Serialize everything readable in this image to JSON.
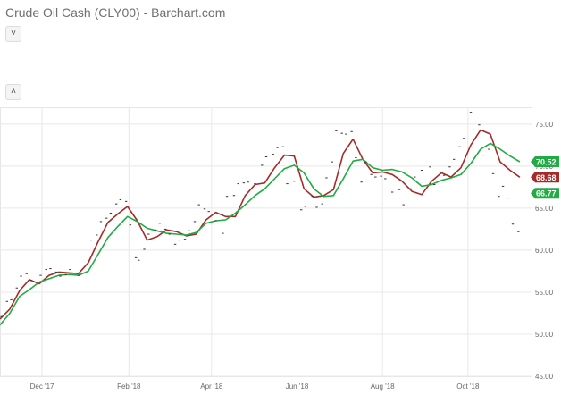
{
  "header": {
    "title": "Crude Oil Cash (CLY00) - Barchart.com",
    "collapse_icon_top": "˅",
    "collapse_icon_bottom": "˄"
  },
  "chart_data": {
    "type": "line",
    "title": "Crude Oil Cash (CLY00) - Barchart.com",
    "xlabel": "",
    "ylabel": "",
    "ylim": [
      45,
      77
    ],
    "yticks": [
      45,
      50,
      55,
      60,
      65,
      70,
      75
    ],
    "ytick_labels": [
      "45.00",
      "50.00",
      "55.00",
      "60.00",
      "65.00",
      "70.00",
      "75.00"
    ],
    "xlim": [
      "2017-11-01",
      "2018-11-16"
    ],
    "xticks": [
      "2017-12-01",
      "2018-02-01",
      "2018-04-01",
      "2018-06-01",
      "2018-08-01",
      "2018-10-01"
    ],
    "xtick_labels": [
      "Dec '17",
      "Feb '18",
      "Apr '18",
      "Jun '18",
      "Aug '18",
      "Oct '18"
    ],
    "grid": true,
    "colors": {
      "short_ma": "#a52a2a",
      "long_ma": "#22aa44",
      "price": "#333333",
      "current_price": "#a52a2a"
    },
    "series": [
      {
        "key": "short_ma",
        "points": [
          [
            "2017-11-01",
            51.8
          ],
          [
            "2017-11-08",
            53.0
          ],
          [
            "2017-11-15",
            55.2
          ],
          [
            "2017-11-22",
            56.5
          ],
          [
            "2017-11-29",
            56.0
          ],
          [
            "2017-12-06",
            57.0
          ],
          [
            "2017-12-13",
            57.4
          ],
          [
            "2017-12-20",
            57.3
          ],
          [
            "2017-12-27",
            57.2
          ],
          [
            "2018-01-03",
            58.5
          ],
          [
            "2018-01-10",
            61.0
          ],
          [
            "2018-01-17",
            63.3
          ],
          [
            "2018-01-24",
            64.3
          ],
          [
            "2018-01-31",
            65.2
          ],
          [
            "2018-02-07",
            63.5
          ],
          [
            "2018-02-14",
            61.2
          ],
          [
            "2018-02-21",
            61.6
          ],
          [
            "2018-02-28",
            62.4
          ],
          [
            "2018-03-07",
            62.2
          ],
          [
            "2018-03-14",
            61.7
          ],
          [
            "2018-03-21",
            61.9
          ],
          [
            "2018-03-28",
            63.6
          ],
          [
            "2018-04-04",
            64.5
          ],
          [
            "2018-04-11",
            64.0
          ],
          [
            "2018-04-18",
            64.0
          ],
          [
            "2018-04-25",
            66.5
          ],
          [
            "2018-05-02",
            67.8
          ],
          [
            "2018-05-09",
            68.0
          ],
          [
            "2018-05-16",
            69.8
          ],
          [
            "2018-05-23",
            71.3
          ],
          [
            "2018-05-30",
            71.2
          ],
          [
            "2018-06-06",
            67.3
          ],
          [
            "2018-06-13",
            66.3
          ],
          [
            "2018-06-20",
            66.5
          ],
          [
            "2018-06-27",
            67.2
          ],
          [
            "2018-07-04",
            71.5
          ],
          [
            "2018-07-11",
            73.2
          ],
          [
            "2018-07-18",
            70.8
          ],
          [
            "2018-07-25",
            69.2
          ],
          [
            "2018-08-01",
            69.3
          ],
          [
            "2018-08-08",
            69.0
          ],
          [
            "2018-08-15",
            68.2
          ],
          [
            "2018-08-22",
            67.0
          ],
          [
            "2018-08-29",
            66.6
          ],
          [
            "2018-09-05",
            68.2
          ],
          [
            "2018-09-12",
            69.2
          ],
          [
            "2018-09-19",
            68.7
          ],
          [
            "2018-09-26",
            69.8
          ],
          [
            "2018-10-03",
            72.5
          ],
          [
            "2018-10-10",
            74.3
          ],
          [
            "2018-10-17",
            73.8
          ],
          [
            "2018-10-24",
            70.5
          ],
          [
            "2018-10-31",
            69.5
          ],
          [
            "2018-11-07",
            68.68
          ]
        ]
      },
      {
        "key": "long_ma",
        "points": [
          [
            "2017-11-01",
            51.1
          ],
          [
            "2017-11-08",
            52.5
          ],
          [
            "2017-11-15",
            54.5
          ],
          [
            "2017-11-22",
            55.3
          ],
          [
            "2017-11-29",
            56.2
          ],
          [
            "2017-12-06",
            56.6
          ],
          [
            "2017-12-13",
            57.0
          ],
          [
            "2017-12-20",
            57.1
          ],
          [
            "2017-12-27",
            57.0
          ],
          [
            "2018-01-03",
            57.5
          ],
          [
            "2018-01-10",
            59.5
          ],
          [
            "2018-01-17",
            61.5
          ],
          [
            "2018-01-24",
            62.8
          ],
          [
            "2018-01-31",
            64.0
          ],
          [
            "2018-02-07",
            63.4
          ],
          [
            "2018-02-14",
            62.6
          ],
          [
            "2018-02-21",
            62.3
          ],
          [
            "2018-02-28",
            62.0
          ],
          [
            "2018-03-07",
            61.9
          ],
          [
            "2018-03-14",
            61.8
          ],
          [
            "2018-03-21",
            62.1
          ],
          [
            "2018-03-28",
            63.2
          ],
          [
            "2018-04-04",
            63.5
          ],
          [
            "2018-04-11",
            63.6
          ],
          [
            "2018-04-18",
            64.4
          ],
          [
            "2018-04-25",
            65.4
          ],
          [
            "2018-05-02",
            66.5
          ],
          [
            "2018-05-09",
            67.3
          ],
          [
            "2018-05-16",
            68.5
          ],
          [
            "2018-05-23",
            69.7
          ],
          [
            "2018-05-30",
            70.1
          ],
          [
            "2018-06-06",
            69.2
          ],
          [
            "2018-06-13",
            67.3
          ],
          [
            "2018-06-20",
            66.4
          ],
          [
            "2018-06-27",
            66.5
          ],
          [
            "2018-07-04",
            68.5
          ],
          [
            "2018-07-11",
            70.6
          ],
          [
            "2018-07-18",
            70.8
          ],
          [
            "2018-07-25",
            69.8
          ],
          [
            "2018-08-01",
            69.5
          ],
          [
            "2018-08-08",
            69.6
          ],
          [
            "2018-08-15",
            69.3
          ],
          [
            "2018-08-22",
            68.6
          ],
          [
            "2018-08-29",
            67.6
          ],
          [
            "2018-09-05",
            67.8
          ],
          [
            "2018-09-12",
            68.3
          ],
          [
            "2018-09-19",
            68.6
          ],
          [
            "2018-09-26",
            69.0
          ],
          [
            "2018-10-03",
            70.3
          ],
          [
            "2018-10-10",
            72.0
          ],
          [
            "2018-10-17",
            72.7
          ],
          [
            "2018-10-24",
            72.0
          ],
          [
            "2018-10-31",
            71.2
          ],
          [
            "2018-11-07",
            70.52
          ]
        ]
      },
      {
        "key": "price",
        "style": "dots",
        "points": [
          [
            "2017-11-02",
            52.1
          ],
          [
            "2017-11-06",
            53.9
          ],
          [
            "2017-11-09",
            54.1
          ],
          [
            "2017-11-13",
            55.5
          ],
          [
            "2017-11-16",
            56.9
          ],
          [
            "2017-11-20",
            57.2
          ],
          [
            "2017-11-23",
            56.4
          ],
          [
            "2017-11-27",
            56.2
          ],
          [
            "2017-11-30",
            57.0
          ],
          [
            "2017-12-04",
            57.7
          ],
          [
            "2017-12-07",
            57.8
          ],
          [
            "2017-12-11",
            57.4
          ],
          [
            "2017-12-14",
            56.9
          ],
          [
            "2017-12-18",
            57.1
          ],
          [
            "2017-12-21",
            57.7
          ],
          [
            "2017-12-27",
            57.0
          ],
          [
            "2018-01-02",
            59.3
          ],
          [
            "2018-01-05",
            61.2
          ],
          [
            "2018-01-09",
            61.8
          ],
          [
            "2018-01-12",
            63.4
          ],
          [
            "2018-01-16",
            63.8
          ],
          [
            "2018-01-19",
            64.4
          ],
          [
            "2018-01-23",
            65.5
          ],
          [
            "2018-01-26",
            66.0
          ],
          [
            "2018-01-30",
            65.8
          ],
          [
            "2018-02-02",
            63.0
          ],
          [
            "2018-02-06",
            59.1
          ],
          [
            "2018-02-08",
            58.8
          ],
          [
            "2018-02-12",
            60.1
          ],
          [
            "2018-02-15",
            61.9
          ],
          [
            "2018-02-20",
            62.4
          ],
          [
            "2018-02-23",
            63.2
          ],
          [
            "2018-02-27",
            62.5
          ],
          [
            "2018-03-02",
            61.9
          ],
          [
            "2018-03-06",
            60.7
          ],
          [
            "2018-03-09",
            61.2
          ],
          [
            "2018-03-13",
            61.3
          ],
          [
            "2018-03-16",
            62.3
          ],
          [
            "2018-03-20",
            63.4
          ],
          [
            "2018-03-23",
            65.4
          ],
          [
            "2018-03-27",
            64.9
          ],
          [
            "2018-03-30",
            64.6
          ],
          [
            "2018-04-04",
            63.5
          ],
          [
            "2018-04-09",
            62.0
          ],
          [
            "2018-04-12",
            66.4
          ],
          [
            "2018-04-17",
            66.5
          ],
          [
            "2018-04-20",
            67.9
          ],
          [
            "2018-04-24",
            68.0
          ],
          [
            "2018-04-27",
            68.1
          ],
          [
            "2018-05-02",
            67.9
          ],
          [
            "2018-05-07",
            70.1
          ],
          [
            "2018-05-10",
            71.1
          ],
          [
            "2018-05-15",
            71.4
          ],
          [
            "2018-05-18",
            72.2
          ],
          [
            "2018-05-22",
            72.3
          ],
          [
            "2018-05-25",
            67.9
          ],
          [
            "2018-05-30",
            68.2
          ],
          [
            "2018-06-04",
            64.8
          ],
          [
            "2018-06-07",
            65.2
          ],
          [
            "2018-06-12",
            66.4
          ],
          [
            "2018-06-15",
            65.1
          ],
          [
            "2018-06-19",
            65.5
          ],
          [
            "2018-06-22",
            68.6
          ],
          [
            "2018-06-26",
            70.5
          ],
          [
            "2018-06-29",
            74.2
          ],
          [
            "2018-07-03",
            73.9
          ],
          [
            "2018-07-06",
            73.8
          ],
          [
            "2018-07-10",
            74.1
          ],
          [
            "2018-07-13",
            71.0
          ],
          [
            "2018-07-17",
            68.1
          ],
          [
            "2018-07-20",
            70.5
          ],
          [
            "2018-07-24",
            69.0
          ],
          [
            "2018-07-27",
            68.7
          ],
          [
            "2018-07-31",
            68.8
          ],
          [
            "2018-08-03",
            68.5
          ],
          [
            "2018-08-08",
            66.9
          ],
          [
            "2018-08-13",
            67.2
          ],
          [
            "2018-08-16",
            65.4
          ],
          [
            "2018-08-21",
            67.3
          ],
          [
            "2018-08-24",
            68.7
          ],
          [
            "2018-08-29",
            69.5
          ],
          [
            "2018-09-04",
            69.9
          ],
          [
            "2018-09-07",
            67.8
          ],
          [
            "2018-09-11",
            69.3
          ],
          [
            "2018-09-14",
            68.9
          ],
          [
            "2018-09-18",
            69.9
          ],
          [
            "2018-09-21",
            70.8
          ],
          [
            "2018-09-25",
            72.3
          ],
          [
            "2018-09-28",
            73.3
          ],
          [
            "2018-10-03",
            76.4
          ],
          [
            "2018-10-05",
            74.3
          ],
          [
            "2018-10-09",
            74.9
          ],
          [
            "2018-10-12",
            71.3
          ],
          [
            "2018-10-16",
            72.0
          ],
          [
            "2018-10-19",
            69.1
          ],
          [
            "2018-10-23",
            66.4
          ],
          [
            "2018-10-26",
            67.6
          ],
          [
            "2018-10-30",
            66.2
          ],
          [
            "2018-11-02",
            63.1
          ],
          [
            "2018-11-06",
            62.2
          ]
        ]
      }
    ],
    "price_badges": [
      {
        "value": "70.52",
        "series": "long_ma"
      },
      {
        "value": "68.68",
        "series": "short_ma"
      },
      {
        "value": "66.77",
        "series": "long_ma"
      }
    ]
  }
}
